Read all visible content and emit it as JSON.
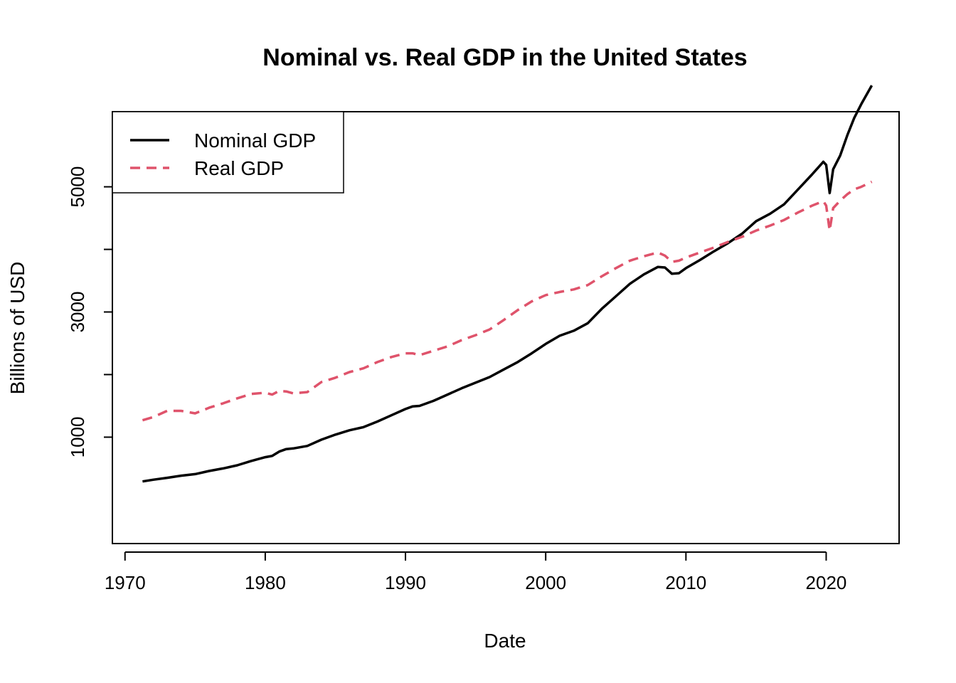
{
  "chart_data": {
    "type": "line",
    "title": "Nominal vs. Real GDP in the United States",
    "xlabel": "Date",
    "ylabel": "Billions of USD",
    "xlim": [
      1969.1,
      2025.2
    ],
    "ylim": [
      -700,
      6200
    ],
    "x_ticks": [
      1970,
      1980,
      1990,
      2000,
      2010,
      2020
    ],
    "y_ticks": [
      0,
      1000,
      2000,
      3000,
      4000,
      5000,
      6000
    ],
    "y_tick_labels": [
      "1000",
      "3000",
      "5000"
    ],
    "y_tick_label_values": [
      1000,
      3000,
      5000
    ],
    "legend": {
      "position": "top-left"
    },
    "series": [
      {
        "name": "Nominal GDP",
        "color": "#000000",
        "dash": "solid",
        "points": [
          [
            1971.25,
            292
          ],
          [
            1972.0,
            320
          ],
          [
            1973.0,
            350
          ],
          [
            1974.0,
            385
          ],
          [
            1975.0,
            410
          ],
          [
            1976.0,
            460
          ],
          [
            1977.0,
            500
          ],
          [
            1978.0,
            550
          ],
          [
            1979.0,
            620
          ],
          [
            1980.0,
            680
          ],
          [
            1980.5,
            700
          ],
          [
            1981.0,
            770
          ],
          [
            1981.5,
            810
          ],
          [
            1982.0,
            820
          ],
          [
            1983.0,
            860
          ],
          [
            1984.0,
            960
          ],
          [
            1985.0,
            1040
          ],
          [
            1986.0,
            1110
          ],
          [
            1987.0,
            1160
          ],
          [
            1988.0,
            1250
          ],
          [
            1989.0,
            1350
          ],
          [
            1990.0,
            1450
          ],
          [
            1990.5,
            1490
          ],
          [
            1991.0,
            1500
          ],
          [
            1992.0,
            1580
          ],
          [
            1993.0,
            1680
          ],
          [
            1994.0,
            1780
          ],
          [
            1995.0,
            1870
          ],
          [
            1996.0,
            1960
          ],
          [
            1997.0,
            2080
          ],
          [
            1998.0,
            2200
          ],
          [
            1999.0,
            2340
          ],
          [
            2000.0,
            2490
          ],
          [
            2001.0,
            2620
          ],
          [
            2002.0,
            2700
          ],
          [
            2003.0,
            2820
          ],
          [
            2004.0,
            3050
          ],
          [
            2005.0,
            3250
          ],
          [
            2006.0,
            3450
          ],
          [
            2007.0,
            3600
          ],
          [
            2008.0,
            3720
          ],
          [
            2008.5,
            3710
          ],
          [
            2009.0,
            3610
          ],
          [
            2009.5,
            3620
          ],
          [
            2010.0,
            3700
          ],
          [
            2011.0,
            3830
          ],
          [
            2012.0,
            3970
          ],
          [
            2013.0,
            4100
          ],
          [
            2014.0,
            4250
          ],
          [
            2015.0,
            4450
          ],
          [
            2016.0,
            4570
          ],
          [
            2017.0,
            4720
          ],
          [
            2018.0,
            4960
          ],
          [
            2019.0,
            5200
          ],
          [
            2019.8,
            5400
          ],
          [
            2020.0,
            5350
          ],
          [
            2020.25,
            4900
          ],
          [
            2020.5,
            5280
          ],
          [
            2021.0,
            5500
          ],
          [
            2021.5,
            5820
          ],
          [
            2022.0,
            6100
          ],
          [
            2022.5,
            6320
          ],
          [
            2023.25,
            6620
          ]
        ]
      },
      {
        "name": "Real GDP",
        "color": "#DF536B",
        "dash": "dashed",
        "points": [
          [
            1971.25,
            1270
          ],
          [
            1972.0,
            1320
          ],
          [
            1973.0,
            1420
          ],
          [
            1974.0,
            1420
          ],
          [
            1975.0,
            1380
          ],
          [
            1976.0,
            1470
          ],
          [
            1977.0,
            1540
          ],
          [
            1978.0,
            1620
          ],
          [
            1979.0,
            1690
          ],
          [
            1980.0,
            1710
          ],
          [
            1980.5,
            1680
          ],
          [
            1981.0,
            1740
          ],
          [
            1981.5,
            1730
          ],
          [
            1982.0,
            1700
          ],
          [
            1983.0,
            1720
          ],
          [
            1984.0,
            1880
          ],
          [
            1985.0,
            1950
          ],
          [
            1986.0,
            2040
          ],
          [
            1987.0,
            2100
          ],
          [
            1988.0,
            2200
          ],
          [
            1989.0,
            2280
          ],
          [
            1990.0,
            2340
          ],
          [
            1990.5,
            2340
          ],
          [
            1991.0,
            2310
          ],
          [
            1992.0,
            2380
          ],
          [
            1993.0,
            2450
          ],
          [
            1994.0,
            2550
          ],
          [
            1995.0,
            2630
          ],
          [
            1996.0,
            2720
          ],
          [
            1997.0,
            2870
          ],
          [
            1998.0,
            3030
          ],
          [
            1999.0,
            3170
          ],
          [
            2000.0,
            3270
          ],
          [
            2001.0,
            3320
          ],
          [
            2002.0,
            3360
          ],
          [
            2003.0,
            3430
          ],
          [
            2004.0,
            3570
          ],
          [
            2005.0,
            3700
          ],
          [
            2006.0,
            3820
          ],
          [
            2007.0,
            3890
          ],
          [
            2008.0,
            3950
          ],
          [
            2008.5,
            3900
          ],
          [
            2009.0,
            3800
          ],
          [
            2009.5,
            3820
          ],
          [
            2010.0,
            3870
          ],
          [
            2011.0,
            3950
          ],
          [
            2012.0,
            4030
          ],
          [
            2013.0,
            4120
          ],
          [
            2014.0,
            4200
          ],
          [
            2015.0,
            4300
          ],
          [
            2016.0,
            4380
          ],
          [
            2017.0,
            4470
          ],
          [
            2018.0,
            4590
          ],
          [
            2019.0,
            4700
          ],
          [
            2019.8,
            4770
          ],
          [
            2020.0,
            4700
          ],
          [
            2020.25,
            4300
          ],
          [
            2020.5,
            4660
          ],
          [
            2021.0,
            4780
          ],
          [
            2021.5,
            4880
          ],
          [
            2022.0,
            4960
          ],
          [
            2022.5,
            5000
          ],
          [
            2023.25,
            5080
          ]
        ]
      }
    ]
  }
}
